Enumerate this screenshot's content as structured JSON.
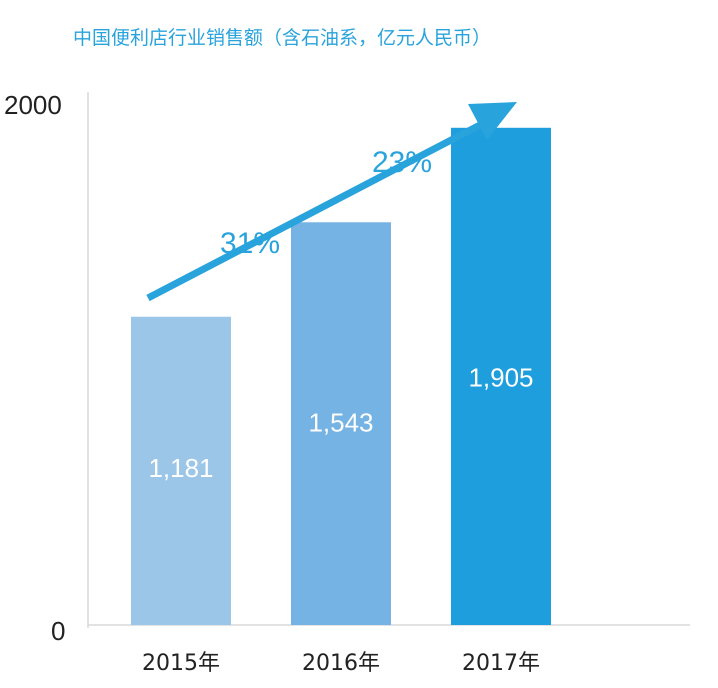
{
  "chart_data": {
    "type": "bar",
    "title": "中国便利店行业销售额（含石油系，亿元人民币）",
    "categories": [
      "2015年",
      "2016年",
      "2017年"
    ],
    "values": [
      1181,
      1543,
      1905
    ],
    "value_labels": [
      "1,181",
      "1,543",
      "1,905"
    ],
    "y_ticks": [
      "0",
      "2000"
    ],
    "ylim": [
      0,
      2000
    ],
    "bar_colors": [
      "#9bc6e8",
      "#74b3e3",
      "#1e9edc"
    ],
    "label_color": "#ffffff",
    "grid": false,
    "annotations": {
      "growth_rates": [
        "31%",
        "23%"
      ],
      "arrow": "trend-up",
      "color": "#29a3dc"
    }
  }
}
